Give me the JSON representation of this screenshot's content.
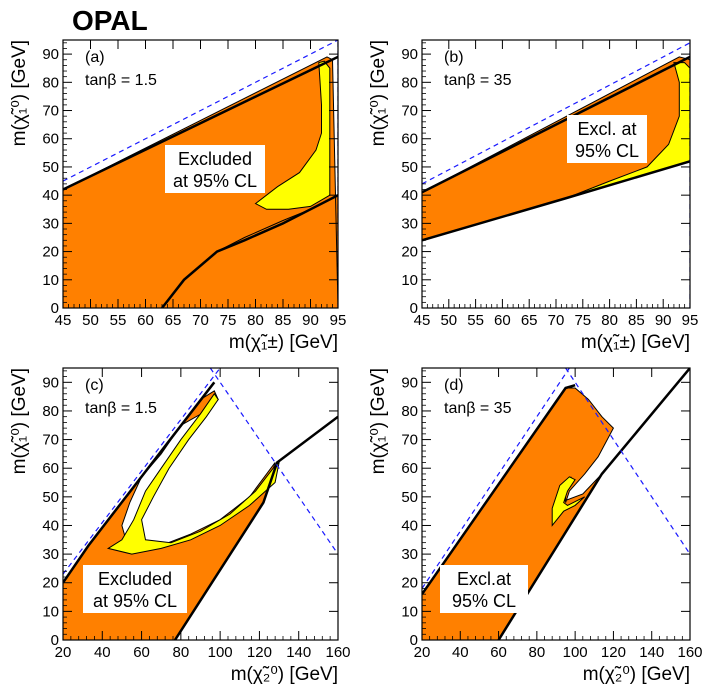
{
  "title": "OPAL",
  "colors": {
    "excluded": "#ff8000",
    "excluded_edge": "#000000",
    "yellow": "#ffff00",
    "kinematic": "#1a1aff"
  },
  "chart_data": [
    {
      "id": "a",
      "type": "area",
      "panel_label": "(a)",
      "param_label": "tanβ = 1.5",
      "xlabel": "m(χ̃₁±) [GeV]",
      "ylabel": "m(χ̃₁⁰) [GeV]",
      "xlim": [
        45,
        95
      ],
      "ylim": [
        0,
        95
      ],
      "xticks": [
        45,
        50,
        55,
        60,
        65,
        70,
        75,
        80,
        85,
        90,
        95
      ],
      "yticks": [
        0,
        10,
        20,
        30,
        40,
        50,
        60,
        70,
        80,
        90
      ],
      "box_text": [
        "Excluded",
        "at 95% CL"
      ],
      "excluded_region": [
        [
          45,
          0
        ],
        [
          45,
          42
        ],
        [
          93,
          89
        ],
        [
          94,
          88
        ],
        [
          95,
          0
        ],
        [
          63,
          0
        ],
        [
          67,
          10
        ],
        [
          73,
          20
        ],
        [
          78,
          25
        ],
        [
          85,
          31
        ],
        [
          90,
          35
        ],
        [
          95,
          40
        ],
        [
          95,
          0
        ]
      ],
      "yellow_region": [
        [
          80,
          37
        ],
        [
          84,
          43
        ],
        [
          88,
          48
        ],
        [
          91,
          56
        ],
        [
          92,
          62
        ],
        [
          92,
          72
        ],
        [
          91.5,
          87
        ],
        [
          92.5,
          87.5
        ],
        [
          93.5,
          85
        ],
        [
          93.5,
          40
        ],
        [
          90,
          36
        ],
        [
          86,
          35
        ],
        [
          82,
          35
        ]
      ],
      "upper_bound": [
        [
          45,
          42
        ],
        [
          95,
          89
        ]
      ],
      "lower_bound": [
        [
          63,
          0
        ],
        [
          67,
          10
        ],
        [
          73,
          20
        ],
        [
          78,
          24
        ],
        [
          85,
          30
        ],
        [
          90,
          35
        ],
        [
          95,
          40
        ]
      ],
      "dashed_lines": [
        [
          [
            45,
            45
          ],
          [
            95,
            95
          ]
        ],
        [
          [
            95,
            0
          ],
          [
            95,
            95
          ]
        ]
      ]
    },
    {
      "id": "b",
      "type": "area",
      "panel_label": "(b)",
      "param_label": "tanβ = 35",
      "xlabel": "m(χ̃₁±) [GeV]",
      "ylabel": "m(χ̃₁⁰) [GeV]",
      "xlim": [
        45,
        95
      ],
      "ylim": [
        0,
        95
      ],
      "xticks": [
        45,
        50,
        55,
        60,
        65,
        70,
        75,
        80,
        85,
        90,
        95
      ],
      "yticks": [
        0,
        10,
        20,
        30,
        40,
        50,
        60,
        70,
        80,
        90
      ],
      "box_text": [
        "Excl. at",
        "95% CL"
      ],
      "excluded_region": [
        [
          45,
          24
        ],
        [
          45,
          41
        ],
        [
          93,
          89
        ],
        [
          95,
          88
        ],
        [
          95,
          52
        ],
        [
          72,
          39
        ],
        [
          45,
          24
        ]
      ],
      "yellow_region": [
        [
          72,
          39
        ],
        [
          80,
          45
        ],
        [
          87,
          50
        ],
        [
          91,
          58
        ],
        [
          93,
          68
        ],
        [
          93,
          80
        ],
        [
          92,
          87
        ],
        [
          94,
          87
        ],
        [
          95,
          85
        ],
        [
          95,
          52
        ]
      ],
      "upper_bound": [
        [
          45,
          41
        ],
        [
          95,
          89
        ]
      ],
      "lower_bound": [
        [
          45,
          24
        ],
        [
          72,
          39
        ],
        [
          95,
          52
        ]
      ],
      "dashed_lines": [
        [
          [
            45,
            44
          ],
          [
            95,
            94
          ]
        ],
        [
          [
            95,
            0
          ],
          [
            95,
            95
          ]
        ]
      ]
    },
    {
      "id": "c",
      "type": "area",
      "panel_label": "(c)",
      "param_label": "tanβ = 1.5",
      "xlabel": "m(χ̃₂⁰) [GeV]",
      "ylabel": "m(χ̃₁⁰) [GeV]",
      "xlim": [
        20,
        160
      ],
      "ylim": [
        0,
        95
      ],
      "xticks": [
        20,
        40,
        60,
        80,
        100,
        120,
        140,
        160
      ],
      "yticks": [
        0,
        10,
        20,
        30,
        40,
        50,
        60,
        70,
        80,
        90
      ],
      "box_text": [
        "Excluded",
        "at 95% CL"
      ],
      "excluded_region": [
        [
          20,
          0
        ],
        [
          20,
          20
        ],
        [
          33,
          33
        ],
        [
          90,
          84
        ],
        [
          97,
          87
        ],
        [
          99,
          84
        ],
        [
          93,
          80
        ],
        [
          80,
          75
        ],
        [
          70,
          65
        ],
        [
          60,
          57
        ],
        [
          54,
          48
        ],
        [
          50,
          40
        ],
        [
          52,
          35
        ],
        [
          58,
          32
        ],
        [
          70,
          33
        ],
        [
          85,
          37
        ],
        [
          100,
          42
        ],
        [
          115,
          50
        ],
        [
          128,
          62
        ],
        [
          122,
          48
        ],
        [
          77,
          0
        ]
      ],
      "yellow_region": [
        [
          43,
          32
        ],
        [
          50,
          35
        ],
        [
          56,
          42
        ],
        [
          62,
          52
        ],
        [
          70,
          60
        ],
        [
          80,
          70
        ],
        [
          90,
          79
        ],
        [
          97,
          86
        ],
        [
          99,
          84
        ],
        [
          93,
          78
        ],
        [
          84,
          70
        ],
        [
          74,
          60
        ],
        [
          66,
          50
        ],
        [
          60,
          42
        ],
        [
          62,
          35
        ],
        [
          75,
          34
        ],
        [
          90,
          38
        ],
        [
          105,
          44
        ],
        [
          118,
          52
        ],
        [
          127,
          60
        ],
        [
          130,
          62
        ],
        [
          128,
          55
        ],
        [
          115,
          47
        ],
        [
          100,
          40
        ],
        [
          85,
          35
        ],
        [
          70,
          32
        ],
        [
          55,
          30
        ]
      ],
      "upper_bound": [
        [
          20,
          20
        ],
        [
          33,
          33
        ],
        [
          97,
          90
        ]
      ],
      "lower_bound": [
        [
          77,
          0
        ],
        [
          122,
          48
        ],
        [
          129,
          62
        ],
        [
          160,
          78
        ]
      ],
      "dashed_lines": [
        [
          [
            20,
            23
          ],
          [
            100,
            95
          ]
        ],
        [
          [
            95,
            95
          ],
          [
            160,
            30
          ]
        ]
      ]
    },
    {
      "id": "d",
      "type": "area",
      "panel_label": "(d)",
      "param_label": "tanβ = 35",
      "xlabel": "m(χ̃₂⁰) [GeV]",
      "ylabel": "m(χ̃₁⁰) [GeV]",
      "xlim": [
        20,
        160
      ],
      "ylim": [
        0,
        95
      ],
      "xticks": [
        20,
        40,
        60,
        80,
        100,
        120,
        140,
        160
      ],
      "yticks": [
        0,
        10,
        20,
        30,
        40,
        50,
        60,
        70,
        80,
        90
      ],
      "box_text": [
        "Excl.at",
        "95% CL"
      ],
      "excluded_region": [
        [
          20,
          0
        ],
        [
          20,
          16
        ],
        [
          95,
          88
        ],
        [
          100,
          88
        ],
        [
          107,
          84
        ],
        [
          114,
          78
        ],
        [
          120,
          74
        ],
        [
          112,
          64
        ],
        [
          105,
          58
        ],
        [
          97,
          52
        ],
        [
          95,
          48
        ],
        [
          95,
          54
        ],
        [
          98,
          57
        ],
        [
          93,
          52
        ],
        [
          92,
          48
        ],
        [
          104,
          51
        ],
        [
          114,
          58
        ],
        [
          60,
          0
        ]
      ],
      "yellow_region": [
        [
          88,
          40
        ],
        [
          88,
          46
        ],
        [
          92,
          54
        ],
        [
          97,
          57
        ],
        [
          100,
          56
        ],
        [
          96,
          52
        ],
        [
          94,
          48
        ],
        [
          96,
          47
        ],
        [
          105,
          50
        ],
        [
          100,
          47
        ],
        [
          94,
          45
        ]
      ],
      "upper_bound": [
        [
          20,
          16
        ],
        [
          95,
          88
        ],
        [
          100,
          89
        ]
      ],
      "lower_bound": [
        [
          60,
          0
        ],
        [
          114,
          58
        ],
        [
          160,
          95
        ]
      ],
      "dashed_lines": [
        [
          [
            20,
            18
          ],
          [
            97,
            95
          ]
        ],
        [
          [
            95,
            95
          ],
          [
            160,
            30
          ]
        ]
      ]
    }
  ]
}
